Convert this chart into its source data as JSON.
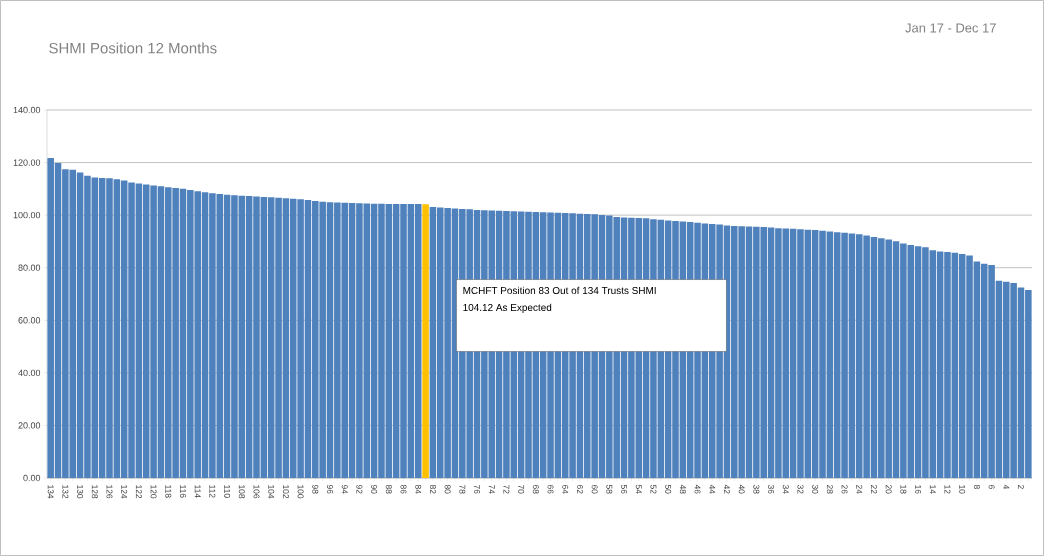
{
  "chart_data": {
    "type": "bar",
    "title": "SHMI Position 12 Months",
    "subtitle": "Jan 17 - Dec 17",
    "categories": [
      "134",
      null,
      "132",
      null,
      "130",
      null,
      "128",
      null,
      "126",
      null,
      "124",
      null,
      "122",
      null,
      "120",
      null,
      "118",
      null,
      "116",
      null,
      "114",
      null,
      "112",
      null,
      "110",
      null,
      "108",
      null,
      "106",
      null,
      "104",
      null,
      "102",
      null,
      "100",
      null,
      "98",
      null,
      "96",
      null,
      "94",
      null,
      "92",
      null,
      "90",
      null,
      "88",
      null,
      "86",
      null,
      "84",
      null,
      "82",
      null,
      "80",
      null,
      "78",
      null,
      "76",
      null,
      "74",
      null,
      "72",
      null,
      "70",
      null,
      "68",
      null,
      "66",
      null,
      "64",
      null,
      "62",
      null,
      "60",
      null,
      "58",
      null,
      "56",
      null,
      "54",
      null,
      "52",
      null,
      "50",
      null,
      "48",
      null,
      "46",
      null,
      "44",
      null,
      "42",
      null,
      "40",
      null,
      "38",
      null,
      "36",
      null,
      "34",
      null,
      "32",
      null,
      "30",
      null,
      "28",
      null,
      "26",
      null,
      "24",
      null,
      "22",
      null,
      "20",
      null,
      "18",
      null,
      "16",
      null,
      "14",
      null,
      "12",
      null,
      "10",
      null,
      "8",
      null,
      "6",
      null,
      "4",
      null,
      "2",
      null
    ],
    "values": [
      121.7,
      119.8,
      117.5,
      117.3,
      116.2,
      115.0,
      114.3,
      114.1,
      114.0,
      113.7,
      113.2,
      112.4,
      112.0,
      111.7,
      111.3,
      111.0,
      110.6,
      110.3,
      110.0,
      109.6,
      109.1,
      108.7,
      108.3,
      108.0,
      107.8,
      107.6,
      107.4,
      107.3,
      107.1,
      106.9,
      106.8,
      106.6,
      106.4,
      106.2,
      106.0,
      105.8,
      105.4,
      105.1,
      104.9,
      104.8,
      104.7,
      104.6,
      104.5,
      104.4,
      104.3,
      104.3,
      104.2,
      104.2,
      104.2,
      104.2,
      104.2,
      104.12,
      103.1,
      102.9,
      102.7,
      102.5,
      102.3,
      102.2,
      102.0,
      101.9,
      101.8,
      101.7,
      101.6,
      101.5,
      101.4,
      101.3,
      101.2,
      101.1,
      101.0,
      100.9,
      100.8,
      100.7,
      100.5,
      100.4,
      100.3,
      100.1,
      99.9,
      99.3,
      99.1,
      99.0,
      98.9,
      98.8,
      98.4,
      98.2,
      98.0,
      97.8,
      97.6,
      97.4,
      97.1,
      96.8,
      96.6,
      96.4,
      96.1,
      95.9,
      95.8,
      95.7,
      95.6,
      95.5,
      95.3,
      95.0,
      94.9,
      94.8,
      94.6,
      94.4,
      94.3,
      94.1,
      93.8,
      93.5,
      93.3,
      93.0,
      92.7,
      92.3,
      91.7,
      91.2,
      90.7,
      90.1,
      89.2,
      88.6,
      88.2,
      87.8,
      86.6,
      86.2,
      86.0,
      85.7,
      85.2,
      84.6,
      82.4,
      81.5,
      81.0,
      75.0,
      74.7,
      74.2,
      72.5,
      71.5
    ],
    "colors": [
      "#4f81bd",
      "#4f81bd",
      "#4f81bd",
      "#4f81bd",
      "#4f81bd",
      "#4f81bd",
      "#4f81bd",
      "#4f81bd",
      "#4f81bd",
      "#4f81bd",
      "#4f81bd",
      "#4f81bd",
      "#4f81bd",
      "#4f81bd",
      "#4f81bd",
      "#4f81bd",
      "#4f81bd",
      "#4f81bd",
      "#4f81bd",
      "#4f81bd",
      "#4f81bd",
      "#4f81bd",
      "#4f81bd",
      "#4f81bd",
      "#4f81bd",
      "#4f81bd",
      "#4f81bd",
      "#4f81bd",
      "#4f81bd",
      "#4f81bd",
      "#4f81bd",
      "#4f81bd",
      "#4f81bd",
      "#4f81bd",
      "#4f81bd",
      "#4f81bd",
      "#4f81bd",
      "#4f81bd",
      "#4f81bd",
      "#4f81bd",
      "#4f81bd",
      "#4f81bd",
      "#4f81bd",
      "#4f81bd",
      "#4f81bd",
      "#4f81bd",
      "#4f81bd",
      "#4f81bd",
      "#4f81bd",
      "#4f81bd",
      "#4f81bd",
      "#ffc000",
      "#4f81bd",
      "#4f81bd",
      "#4f81bd",
      "#4f81bd",
      "#4f81bd",
      "#4f81bd",
      "#4f81bd",
      "#4f81bd",
      "#4f81bd",
      "#4f81bd",
      "#4f81bd",
      "#4f81bd",
      "#4f81bd",
      "#4f81bd",
      "#4f81bd",
      "#4f81bd",
      "#4f81bd",
      "#4f81bd",
      "#4f81bd",
      "#4f81bd",
      "#4f81bd",
      "#4f81bd",
      "#4f81bd",
      "#4f81bd",
      "#4f81bd",
      "#4f81bd",
      "#4f81bd",
      "#4f81bd",
      "#4f81bd",
      "#4f81bd",
      "#4f81bd",
      "#4f81bd",
      "#4f81bd",
      "#4f81bd",
      "#4f81bd",
      "#4f81bd",
      "#4f81bd",
      "#4f81bd",
      "#4f81bd",
      "#4f81bd",
      "#4f81bd",
      "#4f81bd",
      "#4f81bd",
      "#4f81bd",
      "#4f81bd",
      "#4f81bd",
      "#4f81bd",
      "#4f81bd",
      "#4f81bd",
      "#4f81bd",
      "#4f81bd",
      "#4f81bd",
      "#4f81bd",
      "#4f81bd",
      "#4f81bd",
      "#4f81bd",
      "#4f81bd",
      "#4f81bd",
      "#4f81bd",
      "#4f81bd",
      "#4f81bd",
      "#4f81bd",
      "#4f81bd",
      "#4f81bd",
      "#4f81bd",
      "#4f81bd",
      "#4f81bd",
      "#4f81bd",
      "#4f81bd",
      "#4f81bd",
      "#4f81bd",
      "#4f81bd",
      "#4f81bd",
      "#4f81bd",
      "#4f81bd",
      "#4f81bd",
      "#4f81bd",
      "#4f81bd",
      "#4f81bd",
      "#4f81bd",
      "#4f81bd",
      "#4f81bd"
    ],
    "ylim": [
      0,
      140
    ],
    "yticks": [
      {
        "value": 0,
        "label": "0.00"
      },
      {
        "value": 20,
        "label": "20.00"
      },
      {
        "value": 40,
        "label": "40.00"
      },
      {
        "value": 60,
        "label": "60.00"
      },
      {
        "value": 80,
        "label": "80.00"
      },
      {
        "value": 100,
        "label": "100.00"
      },
      {
        "value": 120,
        "label": "120.00"
      },
      {
        "value": 140,
        "label": "140.00"
      }
    ],
    "grid": "y",
    "annotations": [
      "MCHFT Position 83 Out of 134 Trusts SHMI",
      "104.12 As Expected"
    ]
  }
}
